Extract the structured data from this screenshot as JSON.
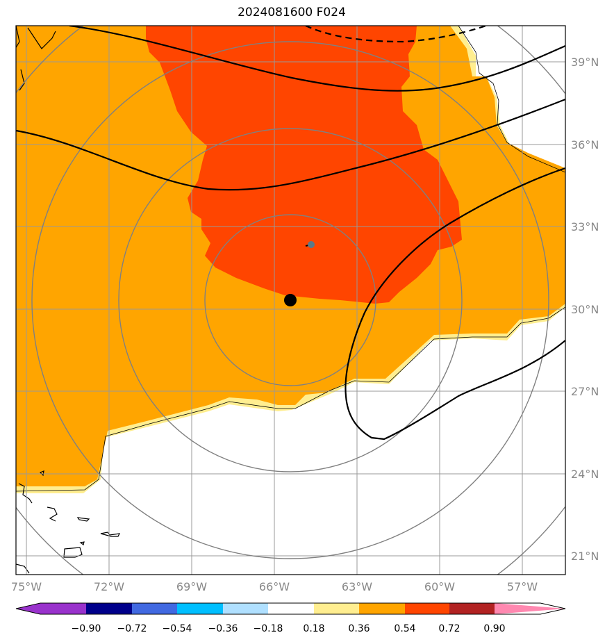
{
  "title": "2024081600 F024",
  "lon_labels": [
    "75°W",
    "72°W",
    "69°W",
    "66°W",
    "63°W",
    "60°W",
    "57°W"
  ],
  "lat_labels": [
    "39°N",
    "36°N",
    "33°N",
    "30°N",
    "27°N",
    "24°N",
    "21°N"
  ],
  "colorbar": {
    "ticks": [
      "−0.90",
      "−0.72",
      "−0.54",
      "−0.36",
      "−0.18",
      "0.18",
      "0.36",
      "0.54",
      "0.72",
      "0.90"
    ],
    "colors": [
      "#9932cc",
      "#00008b",
      "#4169e1",
      "#00bfff",
      "#b0e0ff",
      "#ffffff",
      "#ffee90",
      "#ffa500",
      "#ff4500",
      "#b22222",
      "#ff88b0"
    ]
  },
  "fill_colors": {
    "light_yellow": "#ffee90",
    "orange": "#ffa500",
    "red_orange": "#ff4500"
  },
  "storm_center": {
    "lon": -65.5,
    "lat": 30.3
  }
}
